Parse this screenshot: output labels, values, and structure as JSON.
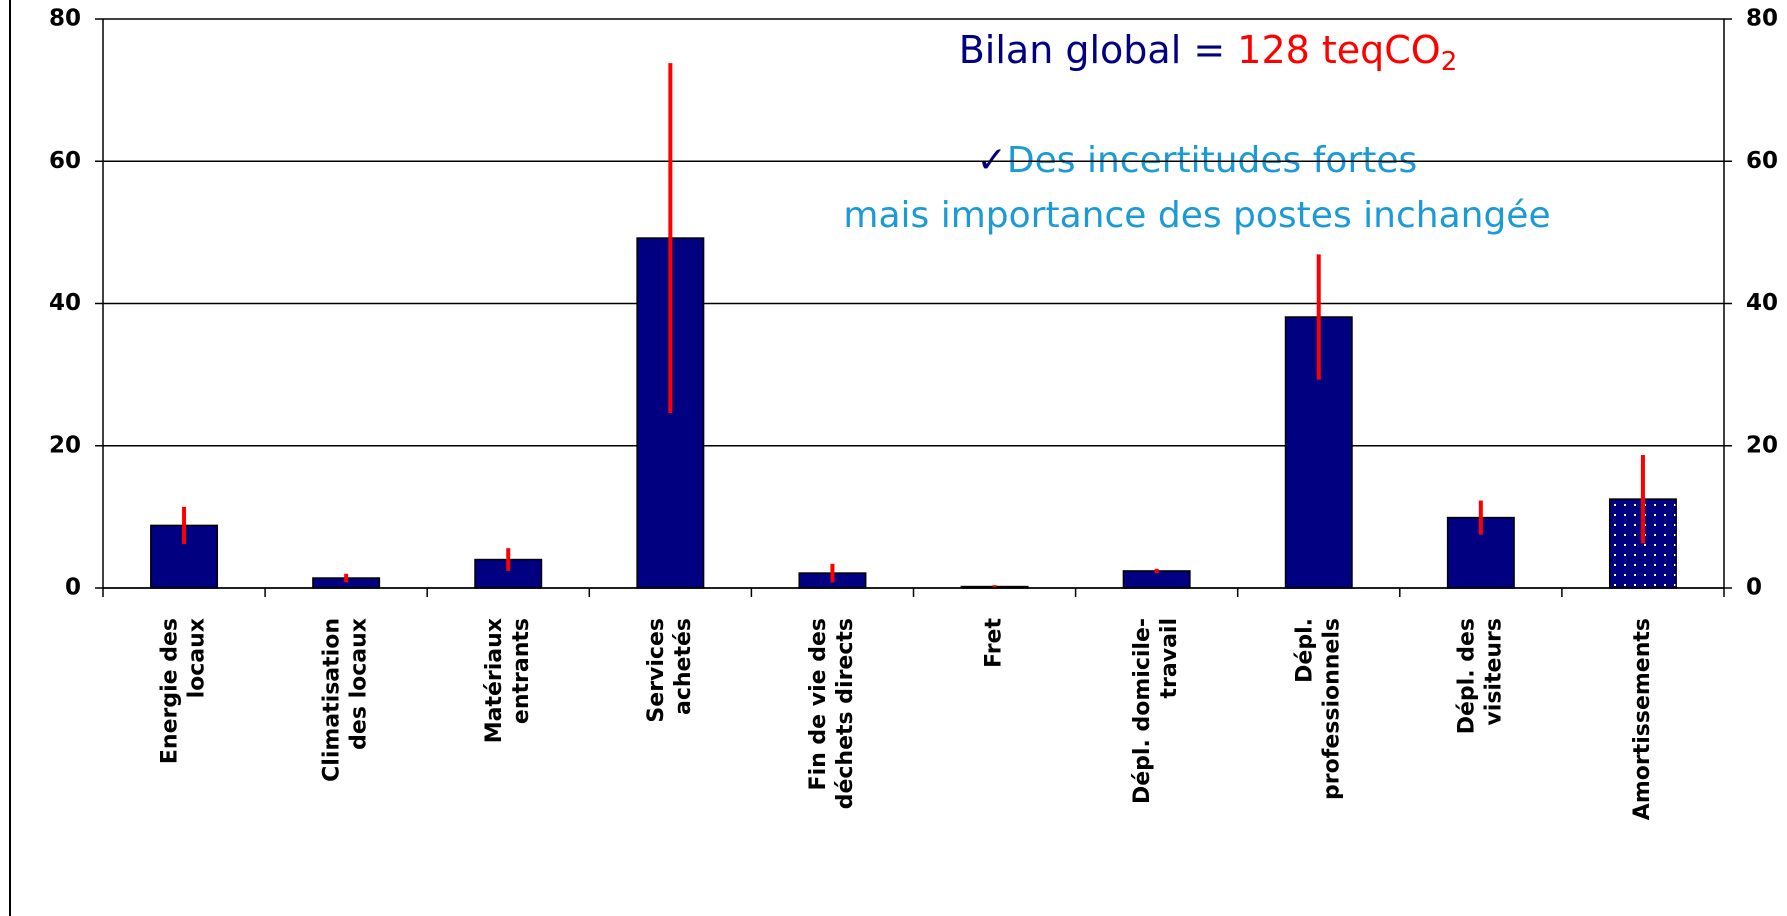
{
  "chart_data": {
    "type": "bar",
    "annotation": {
      "prefix": "Bilan global = ",
      "value": "128 teqCO",
      "subscript": "2"
    },
    "notes": [
      {
        "mark": "✓",
        "text": "Des incertitudes fortes"
      },
      {
        "text": "mais importance des postes inchangée"
      }
    ],
    "categories": [
      [
        "Energie des",
        "locaux"
      ],
      [
        "Climatisation",
        "des locaux"
      ],
      [
        "Matériaux",
        "entrants"
      ],
      [
        "Services",
        "achetés"
      ],
      [
        "Fin de vie des",
        "déchets directs"
      ],
      [
        "Fret"
      ],
      [
        "Dépl. domicile-",
        "travail"
      ],
      [
        "Dépl.",
        "professionnels"
      ],
      [
        "Dépl. des",
        "visiteurs"
      ],
      [
        "Amortissements"
      ]
    ],
    "values": [
      8.8,
      1.4,
      4.0,
      49.2,
      2.1,
      0.2,
      2.4,
      38.1,
      9.9,
      12.5
    ],
    "errors": [
      2.6,
      0.6,
      1.6,
      24.6,
      1.3,
      0.2,
      0.3,
      8.8,
      2.4,
      6.2
    ],
    "patterns": [
      null,
      null,
      null,
      null,
      null,
      null,
      null,
      null,
      null,
      "dots"
    ],
    "color": "#000080",
    "error_color": "#ff0000",
    "ylim": [
      0,
      80
    ],
    "yticks": [
      0,
      20,
      40,
      60,
      80
    ],
    "y2lim": [
      0,
      80
    ],
    "y2ticks": [
      0,
      20,
      40,
      60,
      80
    ],
    "grid": true
  }
}
